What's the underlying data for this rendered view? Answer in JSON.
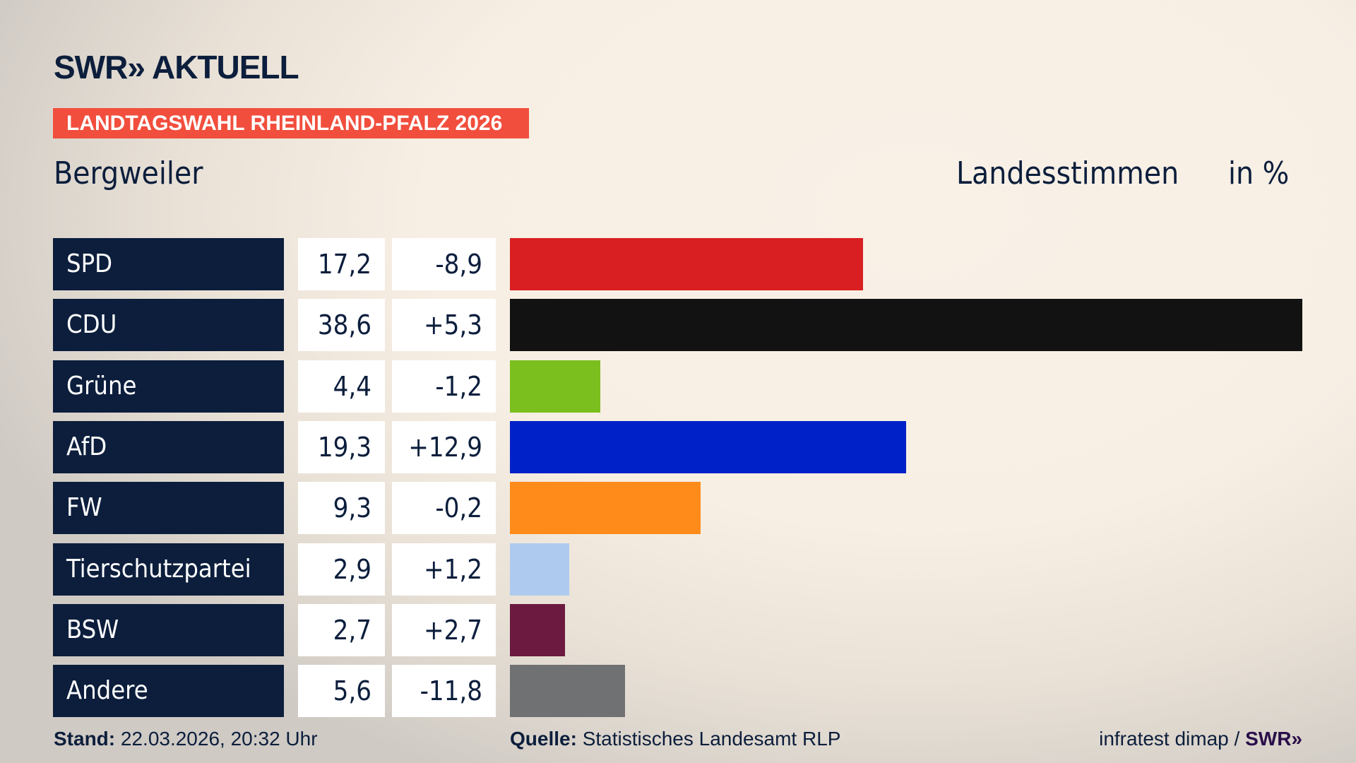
{
  "header": {
    "logo": "SWR» AKTUELL",
    "banner": "LANDTAGSWAHL RHEINLAND-PFALZ 2026",
    "place": "Bergweiler",
    "metric": "Landesstimmen",
    "unit": "in %"
  },
  "chart_data": {
    "type": "bar",
    "orientation": "horizontal",
    "categories": [
      "SPD",
      "CDU",
      "Grüne",
      "AfD",
      "FW",
      "Tierschutzpartei",
      "BSW",
      "Andere"
    ],
    "values": [
      17.2,
      38.6,
      4.4,
      19.3,
      9.3,
      2.9,
      2.7,
      5.6
    ],
    "value_labels": [
      "17,2",
      "38,6",
      "4,4",
      "19,3",
      "9,3",
      "2,9",
      "2,7",
      "5,6"
    ],
    "change_labels": [
      "-8,9",
      "+5,3",
      "-1,2",
      "+12,9",
      "-0,2",
      "+1,2",
      "+2,7",
      "-11,8"
    ],
    "colors": [
      "#d91f21",
      "#121212",
      "#7abf1d",
      "#0021c8",
      "#ff8c1a",
      "#aecbef",
      "#6c1a3f",
      "#707173"
    ],
    "xlim": [
      0,
      38.6
    ],
    "grid": false
  },
  "footer": {
    "stand_label": "Stand:",
    "stand_value": "22.03.2026, 20:32 Uhr",
    "source_label": "Quelle:",
    "source_value": "Statistisches Landesamt RLP",
    "credit": "infratest dimap /",
    "credit_brand": "SWR»"
  }
}
